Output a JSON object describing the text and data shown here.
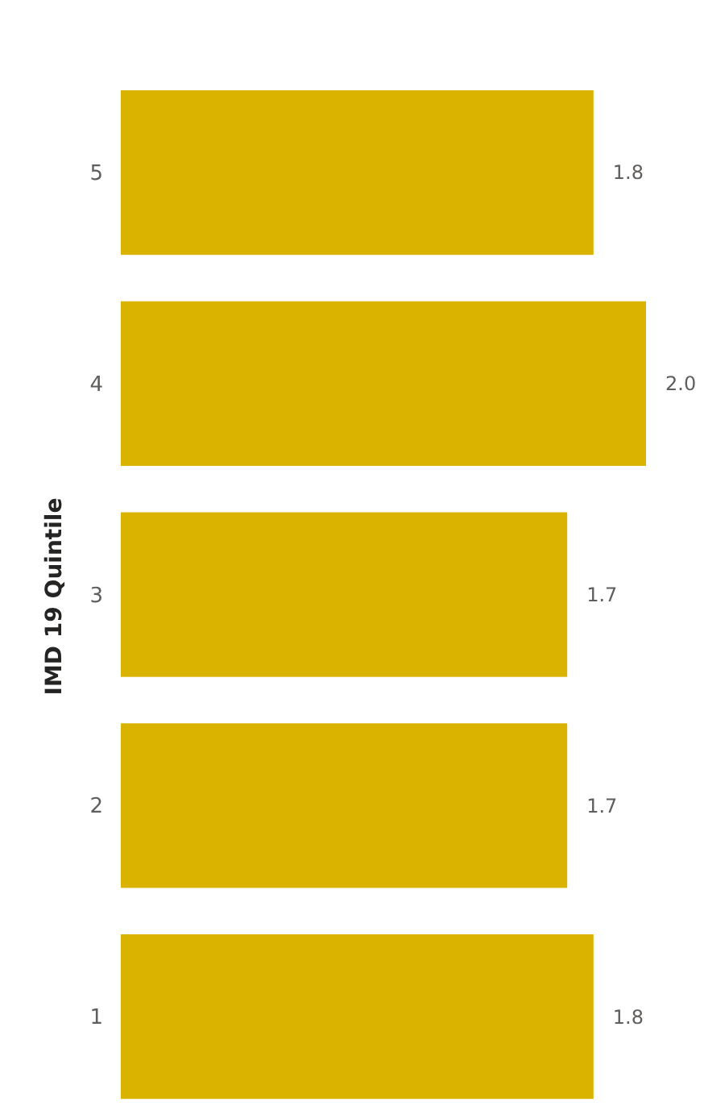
{
  "chart_data": {
    "type": "bar",
    "orientation": "horizontal",
    "ylabel": "IMD 19 Quintile",
    "categories": [
      "5",
      "4",
      "3",
      "2",
      "1"
    ],
    "values": [
      1.8,
      2.0,
      1.7,
      1.7,
      1.8
    ],
    "color": "#d9b300",
    "value_labels": [
      "1.8",
      "2.0",
      "1.7",
      "1.7",
      "1.8"
    ]
  }
}
